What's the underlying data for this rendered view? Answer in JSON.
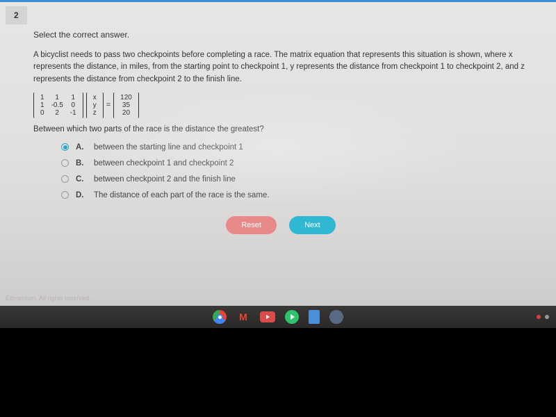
{
  "question_number": "2",
  "prompt": "Select the correct answer.",
  "body": "A bicyclist needs to pass two checkpoints before completing a race. The matrix equation that represents this situation is shown, where x represents the distance, in miles, from the starting point to checkpoint 1, y represents the distance from checkpoint 1 to checkpoint 2, and z represents the distance from checkpoint 2 to the finish line.",
  "matrix_A": [
    [
      "1",
      "1",
      "1"
    ],
    [
      "1",
      "-0.5",
      "0"
    ],
    [
      "0",
      "2",
      "-1"
    ]
  ],
  "matrix_V": [
    [
      "x"
    ],
    [
      "y"
    ],
    [
      "z"
    ]
  ],
  "matrix_B": [
    [
      "120"
    ],
    [
      "35"
    ],
    [
      "20"
    ]
  ],
  "subquestion": "Between which two parts of the race is the distance the greatest?",
  "options": [
    {
      "label": "A.",
      "text": "between the starting line and checkpoint 1",
      "selected": true
    },
    {
      "label": "B.",
      "text": "between checkpoint 1 and checkpoint 2",
      "selected": false
    },
    {
      "label": "C.",
      "text": "between checkpoint 2 and the finish line",
      "selected": false
    },
    {
      "label": "D.",
      "text": "The distance of each part of the race is the same.",
      "selected": false
    }
  ],
  "buttons": {
    "reset": "Reset",
    "next": "Next"
  },
  "footer": "Edmentum. All rights reserved.",
  "colors": {
    "accent": "#2aa8c8",
    "reset": "#e88a8a",
    "next": "#2fb8d4",
    "top_border": "#3a8fd8"
  },
  "taskbar_icons": [
    {
      "name": "chrome",
      "bg": "#fff"
    },
    {
      "name": "gmail",
      "bg": "transparent"
    },
    {
      "name": "youtube",
      "bg": "#d84c4c"
    },
    {
      "name": "play",
      "bg": "#2cc36b"
    },
    {
      "name": "docs",
      "bg": "#4a90d9"
    },
    {
      "name": "chat",
      "bg": "#5a6a85"
    }
  ]
}
